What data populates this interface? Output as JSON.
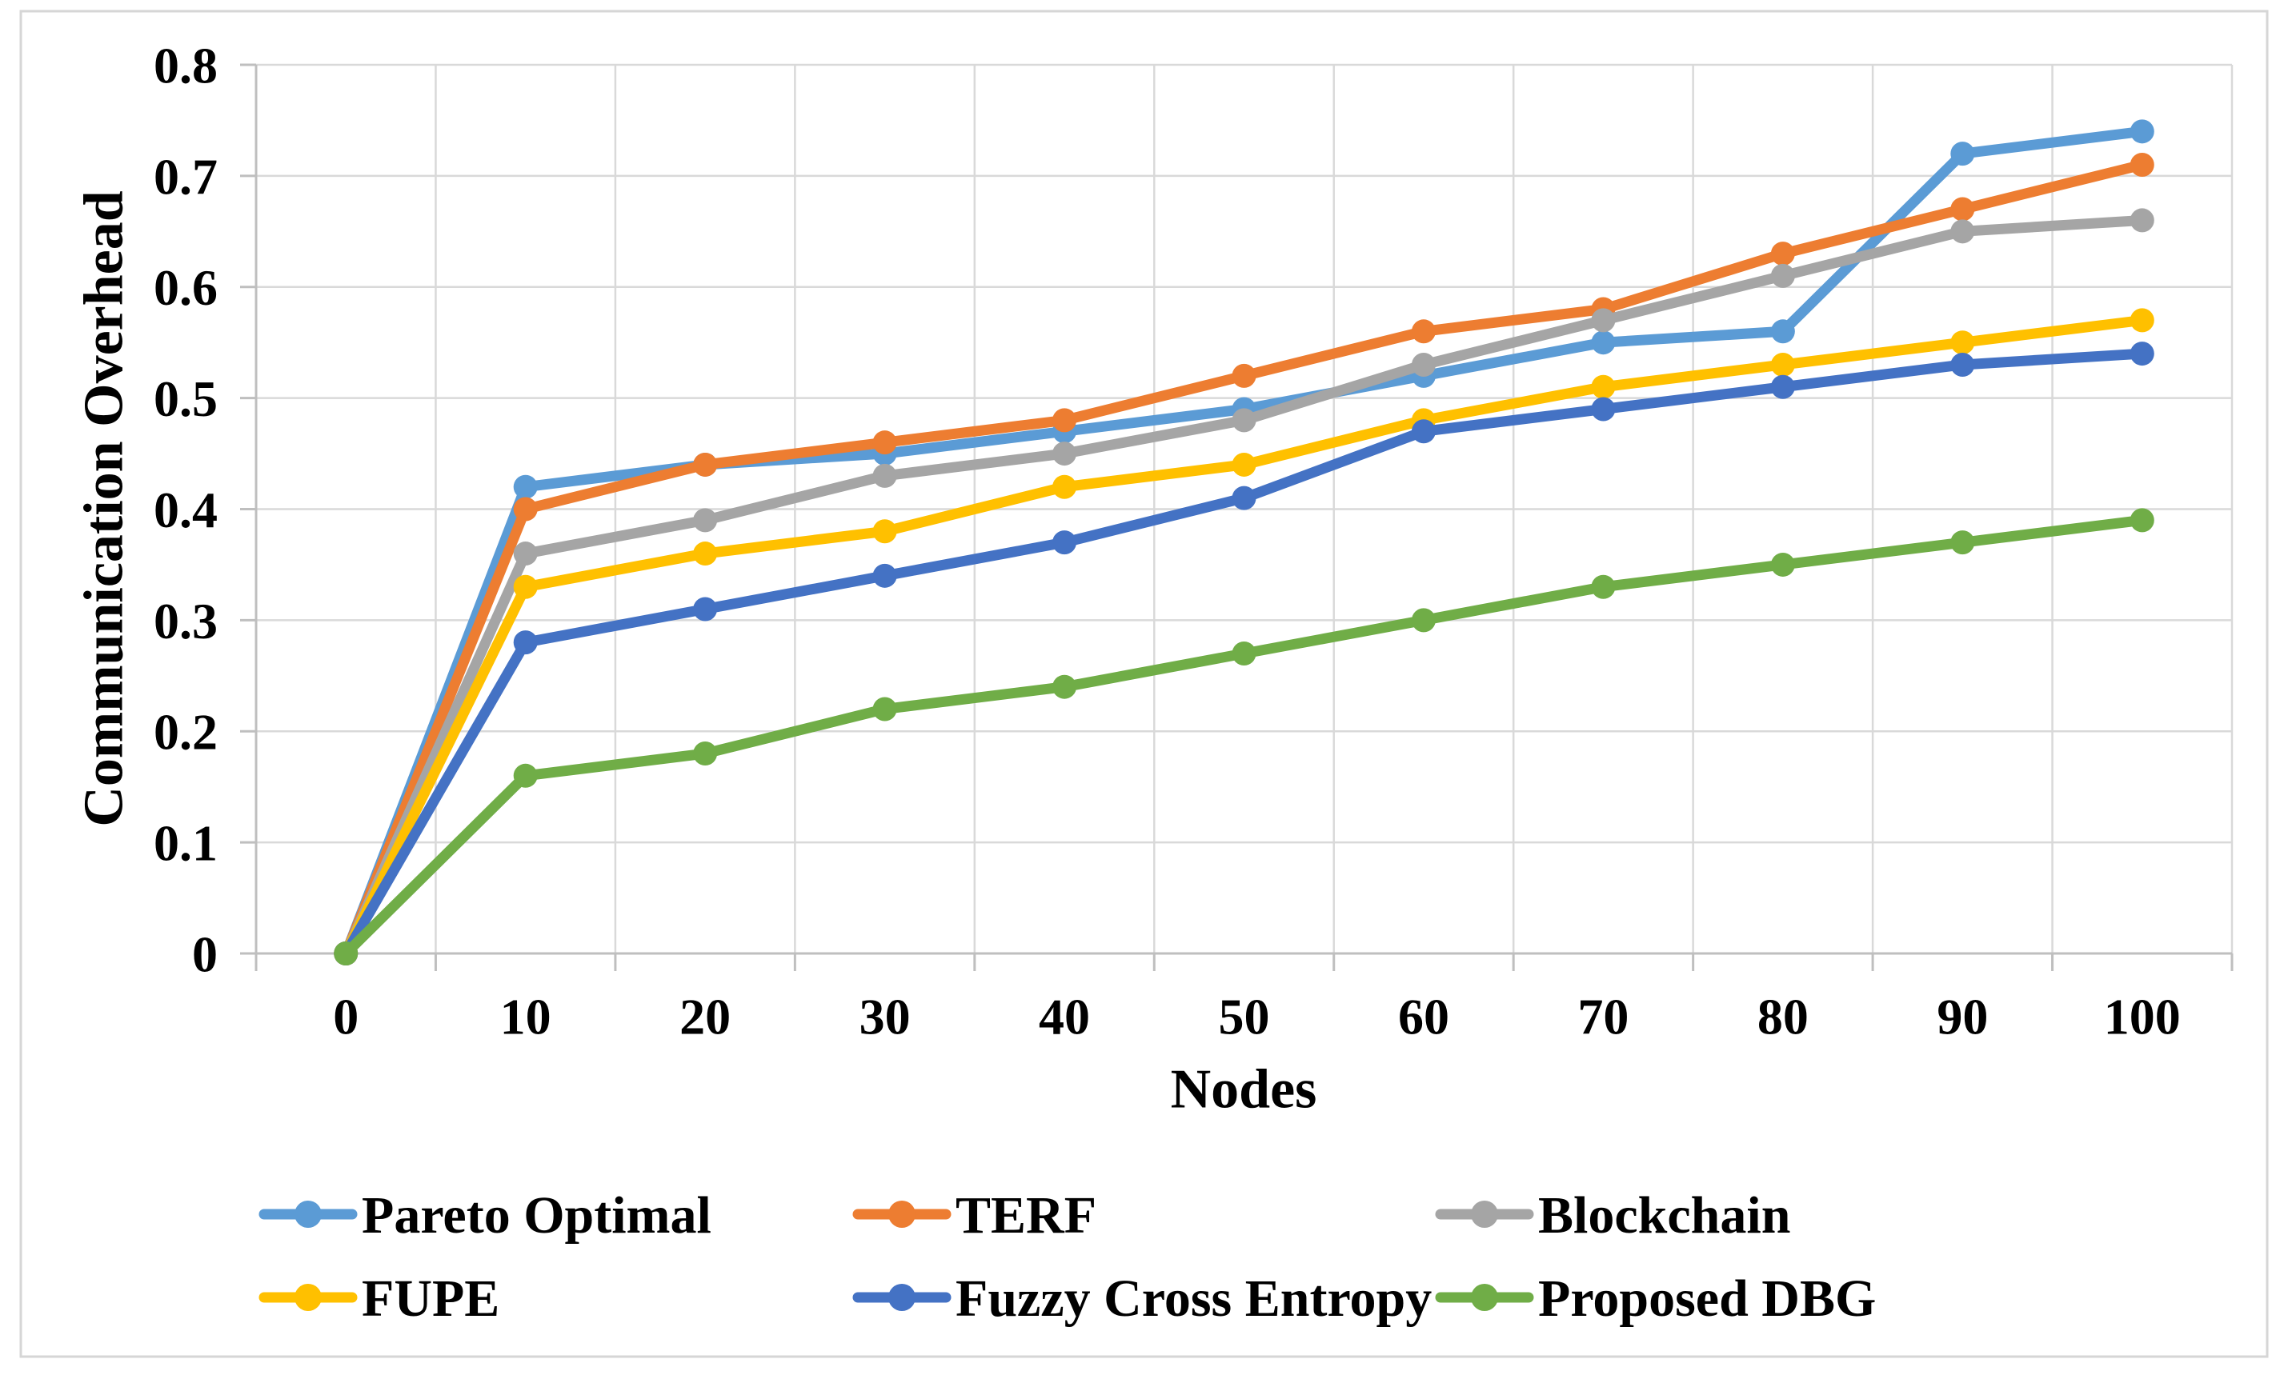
{
  "theme": {
    "background": "#FFFFFF",
    "grid_color": "#D9D9D9",
    "axis_color": "#BFBFBF",
    "border_color": "#D6D6D6",
    "text_color": "#000000"
  },
  "chart_data": {
    "type": "line",
    "title": "",
    "xlabel": "Nodes",
    "ylabel": "Communication Overhead",
    "x": [
      0,
      10,
      20,
      30,
      40,
      50,
      60,
      70,
      80,
      90,
      100
    ],
    "x_tick_labels": [
      "0",
      "10",
      "20",
      "30",
      "40",
      "50",
      "60",
      "70",
      "80",
      "90",
      "100"
    ],
    "y_ticks": [
      0,
      0.1,
      0.2,
      0.3,
      0.4,
      0.5,
      0.6,
      0.7,
      0.8
    ],
    "y_tick_labels": [
      "0",
      "0.1",
      "0.2",
      "0.3",
      "0.4",
      "0.5",
      "0.6",
      "0.7",
      "0.8"
    ],
    "ylim": [
      0,
      0.8
    ],
    "grid": true,
    "legend_position": "bottom",
    "marker": "circle",
    "series": [
      {
        "name": "Pareto Optimal",
        "color": "#5B9BD5",
        "values": [
          0,
          0.42,
          0.44,
          0.45,
          0.47,
          0.49,
          0.52,
          0.55,
          0.56,
          0.72,
          0.74
        ]
      },
      {
        "name": "TERF",
        "color": "#ED7D31",
        "values": [
          0,
          0.4,
          0.44,
          0.46,
          0.48,
          0.52,
          0.56,
          0.58,
          0.63,
          0.67,
          0.71
        ]
      },
      {
        "name": "Blockchain",
        "color": "#A5A5A5",
        "values": [
          0,
          0.36,
          0.39,
          0.43,
          0.45,
          0.48,
          0.53,
          0.57,
          0.61,
          0.65,
          0.66
        ]
      },
      {
        "name": "FUPE",
        "color": "#FFC000",
        "values": [
          0,
          0.33,
          0.36,
          0.38,
          0.42,
          0.44,
          0.48,
          0.51,
          0.53,
          0.55,
          0.57
        ]
      },
      {
        "name": "Fuzzy Cross Entropy",
        "color": "#4472C4",
        "values": [
          0,
          0.28,
          0.31,
          0.34,
          0.37,
          0.41,
          0.47,
          0.49,
          0.51,
          0.53,
          0.54
        ]
      },
      {
        "name": "Proposed DBG",
        "color": "#70AD47",
        "values": [
          0,
          0.16,
          0.18,
          0.22,
          0.24,
          0.27,
          0.3,
          0.33,
          0.35,
          0.37,
          0.39
        ]
      }
    ]
  }
}
